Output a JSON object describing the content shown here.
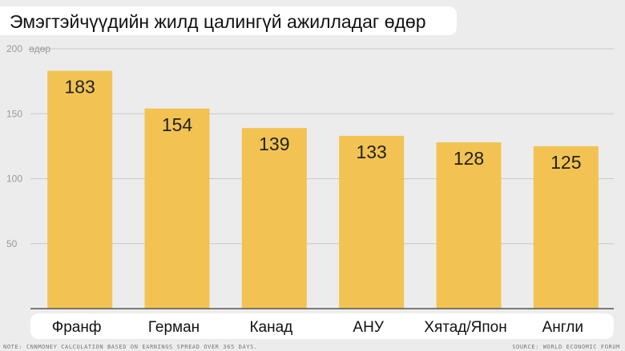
{
  "chart_data": {
    "type": "bar",
    "title": "Эмэгтэйчүүдийн жилд цалингүй ажилладаг өдөр",
    "unit_label": "өдөр",
    "categories": [
      "Франф",
      "Герман",
      "Канад",
      "АНУ",
      "Хятад/Япон",
      "Англи"
    ],
    "values": [
      183,
      154,
      139,
      133,
      128,
      125
    ],
    "yticks": [
      50,
      100,
      150,
      200
    ],
    "ylim": [
      0,
      200
    ],
    "grid": true,
    "bar_color": "#f2c353"
  },
  "footer": {
    "note": "NOTE: CNNMONEY CALCULATION BASED ON EARNINGS SPREAD OVER 365 DAYS.",
    "source": "SOURCE: WORLD ECONOMIC FORUM"
  }
}
